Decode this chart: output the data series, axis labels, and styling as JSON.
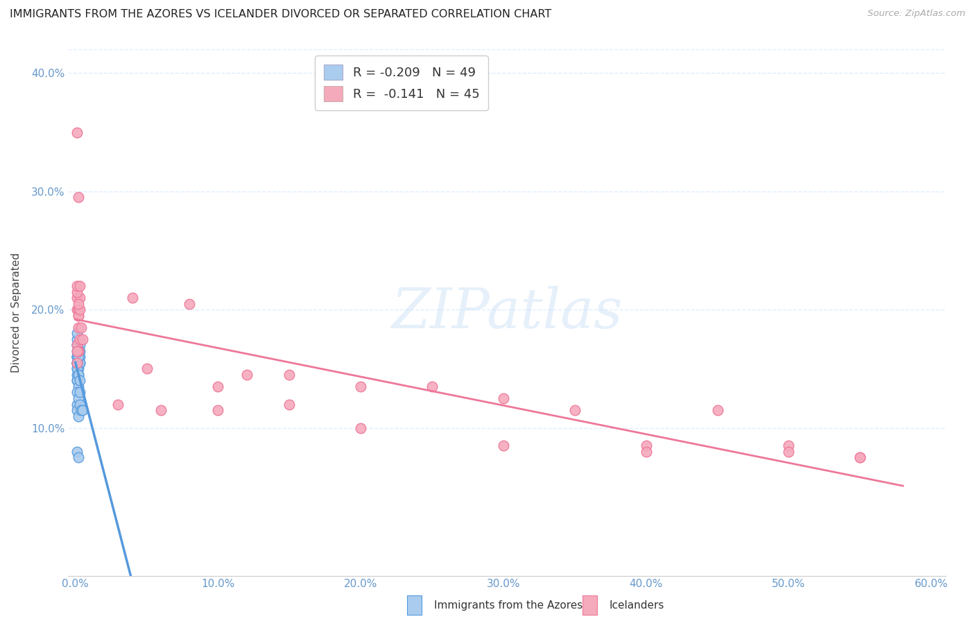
{
  "title": "IMMIGRANTS FROM THE AZORES VS ICELANDER DIVORCED OR SEPARATED CORRELATION CHART",
  "source": "Source: ZipAtlas.com",
  "ylabel": "Divorced or Separated",
  "legend_label1": "Immigrants from the Azores",
  "legend_label2": "Icelanders",
  "r1": -0.209,
  "n1": 49,
  "r2": -0.141,
  "n2": 45,
  "color_blue": "#aaccee",
  "color_pink": "#f5aabc",
  "color_blue_dark": "#5599dd",
  "color_pink_dark": "#ee7799",
  "background": "#ffffff",
  "grid_color": "#ddeeff",
  "azores_x": [
    0.001,
    0.002,
    0.001,
    0.003,
    0.001,
    0.002,
    0.001,
    0.003,
    0.001,
    0.002,
    0.001,
    0.002,
    0.003,
    0.001,
    0.002,
    0.001,
    0.002,
    0.001,
    0.003,
    0.001,
    0.002,
    0.001,
    0.002,
    0.001,
    0.001,
    0.002,
    0.001,
    0.002,
    0.003,
    0.001,
    0.002,
    0.001,
    0.001,
    0.002,
    0.001,
    0.002,
    0.001,
    0.002,
    0.003,
    0.001,
    0.002,
    0.003,
    0.001,
    0.002,
    0.003,
    0.004,
    0.005,
    0.001,
    0.002
  ],
  "azores_y": [
    0.155,
    0.165,
    0.15,
    0.17,
    0.14,
    0.16,
    0.155,
    0.165,
    0.17,
    0.16,
    0.155,
    0.15,
    0.16,
    0.165,
    0.155,
    0.145,
    0.155,
    0.16,
    0.155,
    0.17,
    0.165,
    0.16,
    0.155,
    0.175,
    0.16,
    0.165,
    0.155,
    0.165,
    0.155,
    0.18,
    0.145,
    0.15,
    0.155,
    0.16,
    0.14,
    0.135,
    0.13,
    0.145,
    0.14,
    0.12,
    0.125,
    0.13,
    0.115,
    0.11,
    0.12,
    0.115,
    0.115,
    0.08,
    0.075
  ],
  "icelanders_x": [
    0.001,
    0.002,
    0.001,
    0.002,
    0.001,
    0.002,
    0.003,
    0.001,
    0.002,
    0.003,
    0.001,
    0.002,
    0.001,
    0.002,
    0.001,
    0.003,
    0.004,
    0.002,
    0.005,
    0.001,
    0.002,
    0.003,
    0.04,
    0.05,
    0.08,
    0.1,
    0.12,
    0.15,
    0.2,
    0.25,
    0.3,
    0.35,
    0.4,
    0.45,
    0.5,
    0.55,
    0.03,
    0.06,
    0.1,
    0.15,
    0.2,
    0.3,
    0.4,
    0.5,
    0.55
  ],
  "icelanders_y": [
    0.17,
    0.165,
    0.2,
    0.185,
    0.21,
    0.195,
    0.21,
    0.155,
    0.165,
    0.175,
    0.215,
    0.2,
    0.22,
    0.195,
    0.165,
    0.2,
    0.185,
    0.205,
    0.175,
    0.35,
    0.295,
    0.22,
    0.21,
    0.15,
    0.205,
    0.135,
    0.145,
    0.145,
    0.135,
    0.135,
    0.125,
    0.115,
    0.085,
    0.115,
    0.085,
    0.075,
    0.12,
    0.115,
    0.115,
    0.12,
    0.1,
    0.085,
    0.08,
    0.08,
    0.075
  ],
  "xlim": [
    -0.005,
    0.61
  ],
  "ylim": [
    -0.025,
    0.42
  ],
  "xticks": [
    0.0,
    0.1,
    0.2,
    0.3,
    0.4,
    0.5,
    0.6
  ],
  "yticks": [
    0.0,
    0.1,
    0.2,
    0.3,
    0.4
  ],
  "xtick_labels": [
    "0.0%",
    "10.0%",
    "20.0%",
    "30.0%",
    "40.0%",
    "50.0%",
    "60.0%"
  ],
  "ytick_labels": [
    "",
    "10.0%",
    "20.0%",
    "30.0%",
    "40.0%"
  ]
}
